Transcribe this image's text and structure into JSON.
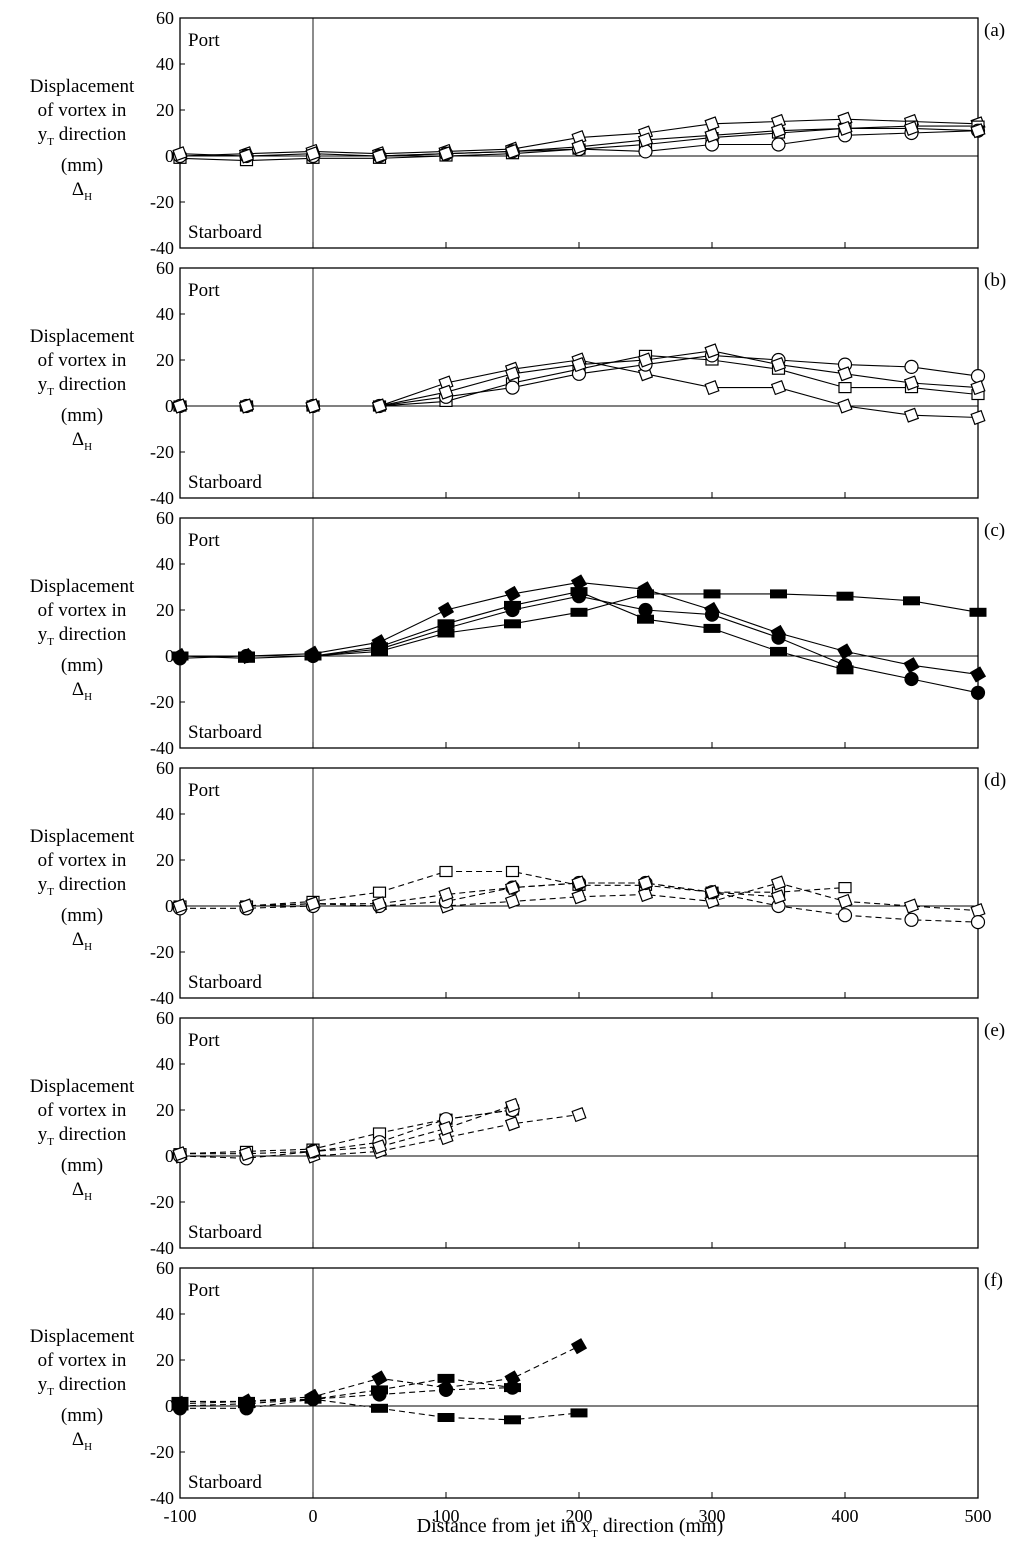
{
  "chart_data": {
    "type": "scatter",
    "xlabel": "Distance from jet in x_T direction (mm)",
    "ylabel_lines": [
      "Displacement",
      "of vortex in",
      "y_T direction",
      "(mm)",
      "Δ_H"
    ],
    "xlim": [
      -100,
      500
    ],
    "ylim": [
      -40,
      60
    ],
    "x_ticks": [
      -100,
      0,
      100,
      200,
      300,
      400,
      500
    ],
    "y_ticks": [
      -40,
      -20,
      0,
      20,
      40,
      60
    ],
    "region_labels": {
      "top": "Port",
      "bottom": "Starboard"
    },
    "panels": [
      {
        "label": "(a)",
        "series": [
          {
            "marker": "diamond",
            "filled": false,
            "line": "solid",
            "x": [
              -100,
              -50,
              0,
              50,
              100,
              150,
              200,
              250,
              300,
              350,
              400,
              450,
              500
            ],
            "y": [
              0,
              1,
              2,
              1,
              2,
              3,
              8,
              10,
              14,
              15,
              16,
              15,
              14
            ]
          },
          {
            "marker": "square",
            "filled": false,
            "line": "solid",
            "x": [
              -100,
              -50,
              0,
              50,
              100,
              150,
              200,
              250,
              300,
              350,
              400,
              450,
              500
            ],
            "y": [
              -1,
              -2,
              -1,
              -1,
              0,
              1,
              3,
              5,
              8,
              10,
              12,
              13,
              13
            ]
          },
          {
            "marker": "circle",
            "filled": false,
            "line": "solid",
            "x": [
              -100,
              -50,
              0,
              50,
              100,
              150,
              200,
              250,
              300,
              350,
              400,
              450,
              500
            ],
            "y": [
              0,
              0,
              0,
              0,
              1,
              2,
              3,
              2,
              5,
              5,
              9,
              10,
              11
            ]
          },
          {
            "marker": "diamond",
            "filled": false,
            "line": "solid",
            "x": [
              -100,
              -50,
              0,
              50,
              100,
              150,
              200,
              250,
              300,
              350,
              400,
              450,
              500
            ],
            "y": [
              1,
              0,
              1,
              0,
              1,
              2,
              4,
              7,
              9,
              11,
              12,
              12,
              11
            ]
          }
        ]
      },
      {
        "label": "(b)",
        "series": [
          {
            "marker": "diamond",
            "filled": false,
            "line": "solid",
            "x": [
              -100,
              -50,
              0,
              50,
              100,
              150,
              200,
              250,
              300,
              350,
              400,
              450,
              500
            ],
            "y": [
              0,
              0,
              0,
              0,
              10,
              16,
              20,
              14,
              8,
              8,
              0,
              -4,
              -5
            ]
          },
          {
            "marker": "square",
            "filled": false,
            "line": "solid",
            "x": [
              -100,
              -50,
              0,
              50,
              100,
              150,
              200,
              250,
              300,
              350,
              400,
              450,
              500
            ],
            "y": [
              0,
              0,
              0,
              0,
              2,
              10,
              16,
              22,
              20,
              16,
              8,
              8,
              5
            ]
          },
          {
            "marker": "circle",
            "filled": false,
            "line": "solid",
            "x": [
              -100,
              -50,
              0,
              50,
              100,
              150,
              200,
              250,
              300,
              350,
              400,
              450,
              500
            ],
            "y": [
              0,
              0,
              0,
              0,
              4,
              8,
              14,
              18,
              22,
              20,
              18,
              17,
              13
            ]
          },
          {
            "marker": "diamond",
            "filled": false,
            "line": "solid",
            "x": [
              -100,
              -50,
              0,
              50,
              100,
              150,
              200,
              250,
              300,
              350,
              400,
              450,
              500
            ],
            "y": [
              0,
              0,
              0,
              0,
              6,
              14,
              18,
              20,
              24,
              18,
              14,
              10,
              8
            ]
          }
        ]
      },
      {
        "label": "(c)",
        "series": [
          {
            "marker": "diamond",
            "filled": true,
            "line": "solid",
            "x": [
              -100,
              -50,
              0,
              50,
              100,
              150,
              200,
              250,
              300,
              350,
              400,
              450,
              500
            ],
            "y": [
              0,
              0,
              1,
              6,
              20,
              27,
              32,
              29,
              20,
              10,
              2,
              -4,
              -8
            ]
          },
          {
            "marker": "square",
            "filled": true,
            "line": "solid",
            "x": [
              -100,
              -50,
              0,
              50,
              100,
              150,
              200,
              250,
              300,
              350,
              400,
              450,
              500
            ],
            "y": [
              0,
              -1,
              0,
              2,
              10,
              14,
              19,
              27,
              27,
              27,
              26,
              24,
              19
            ]
          },
          {
            "marker": "circle",
            "filled": true,
            "line": "solid",
            "x": [
              -100,
              -50,
              0,
              50,
              100,
              150,
              200,
              250,
              300,
              350,
              400,
              450,
              500
            ],
            "y": [
              -1,
              0,
              0,
              3,
              12,
              20,
              26,
              20,
              18,
              8,
              -4,
              -10,
              -16
            ]
          },
          {
            "marker": "square",
            "filled": true,
            "line": "solid",
            "x": [
              -100,
              -50,
              0,
              50,
              100,
              150,
              200,
              250,
              300,
              350,
              400
            ],
            "y": [
              0,
              0,
              0,
              4,
              14,
              22,
              28,
              16,
              12,
              2,
              -6
            ]
          }
        ]
      },
      {
        "label": "(d)",
        "series": [
          {
            "marker": "square",
            "filled": false,
            "line": "dashed",
            "x": [
              -100,
              -50,
              0,
              50,
              100,
              150,
              200,
              250,
              300,
              350,
              400
            ],
            "y": [
              0,
              0,
              2,
              6,
              15,
              15,
              9,
              9,
              6,
              6,
              8
            ]
          },
          {
            "marker": "diamond",
            "filled": false,
            "line": "dashed",
            "x": [
              -100,
              -50,
              0,
              50,
              100,
              150,
              200,
              250,
              300,
              350,
              400,
              450,
              500
            ],
            "y": [
              0,
              0,
              1,
              0,
              0,
              2,
              4,
              5,
              2,
              10,
              2,
              0,
              -2
            ]
          },
          {
            "marker": "circle",
            "filled": false,
            "line": "dashed",
            "x": [
              -100,
              -50,
              0,
              50,
              100,
              150,
              200,
              250,
              300,
              350,
              400,
              450,
              500
            ],
            "y": [
              -1,
              -1,
              0,
              0,
              2,
              8,
              10,
              10,
              6,
              0,
              -4,
              -6,
              -7
            ]
          },
          {
            "marker": "diamond",
            "filled": false,
            "line": "dashed",
            "x": [
              -100,
              -50,
              0,
              50,
              100,
              150,
              200,
              250,
              300,
              350
            ],
            "y": [
              0,
              0,
              1,
              1,
              5,
              8,
              10,
              10,
              6,
              4
            ]
          }
        ]
      },
      {
        "label": "(e)",
        "series": [
          {
            "marker": "square",
            "filled": false,
            "line": "dashed",
            "x": [
              -100,
              -50,
              0,
              50,
              100,
              150
            ],
            "y": [
              1,
              2,
              3,
              10,
              16,
              20
            ]
          },
          {
            "marker": "diamond",
            "filled": false,
            "line": "dashed",
            "x": [
              -100,
              -50,
              0,
              50,
              100,
              150,
              200
            ],
            "y": [
              0,
              0,
              0,
              2,
              8,
              14,
              18
            ]
          },
          {
            "marker": "circle",
            "filled": false,
            "line": "dashed",
            "x": [
              -100,
              -50,
              0,
              50,
              100,
              150
            ],
            "y": [
              0,
              -1,
              2,
              6,
              16,
              20
            ]
          },
          {
            "marker": "diamond",
            "filled": false,
            "line": "dashed",
            "x": [
              -100,
              -50,
              0,
              50,
              100,
              150
            ],
            "y": [
              1,
              1,
              2,
              4,
              12,
              22
            ]
          }
        ]
      },
      {
        "label": "(f)",
        "series": [
          {
            "marker": "diamond",
            "filled": true,
            "line": "dashed",
            "x": [
              -100,
              -50,
              0,
              50,
              100,
              150,
              200
            ],
            "y": [
              1,
              2,
              4,
              12,
              8,
              12,
              26
            ]
          },
          {
            "marker": "square",
            "filled": true,
            "line": "dashed",
            "x": [
              -100,
              -50,
              0,
              50,
              100,
              150,
              200
            ],
            "y": [
              0,
              1,
              3,
              -1,
              -5,
              -6,
              -3
            ]
          },
          {
            "marker": "circle",
            "filled": true,
            "line": "dashed",
            "x": [
              -100,
              -50,
              0,
              50,
              100,
              150
            ],
            "y": [
              -1,
              -1,
              3,
              5,
              7,
              8
            ]
          },
          {
            "marker": "square",
            "filled": true,
            "line": "dashed",
            "x": [
              -100,
              -50,
              0,
              50,
              100,
              150
            ],
            "y": [
              2,
              2,
              3,
              7,
              12,
              8
            ]
          }
        ]
      }
    ]
  }
}
